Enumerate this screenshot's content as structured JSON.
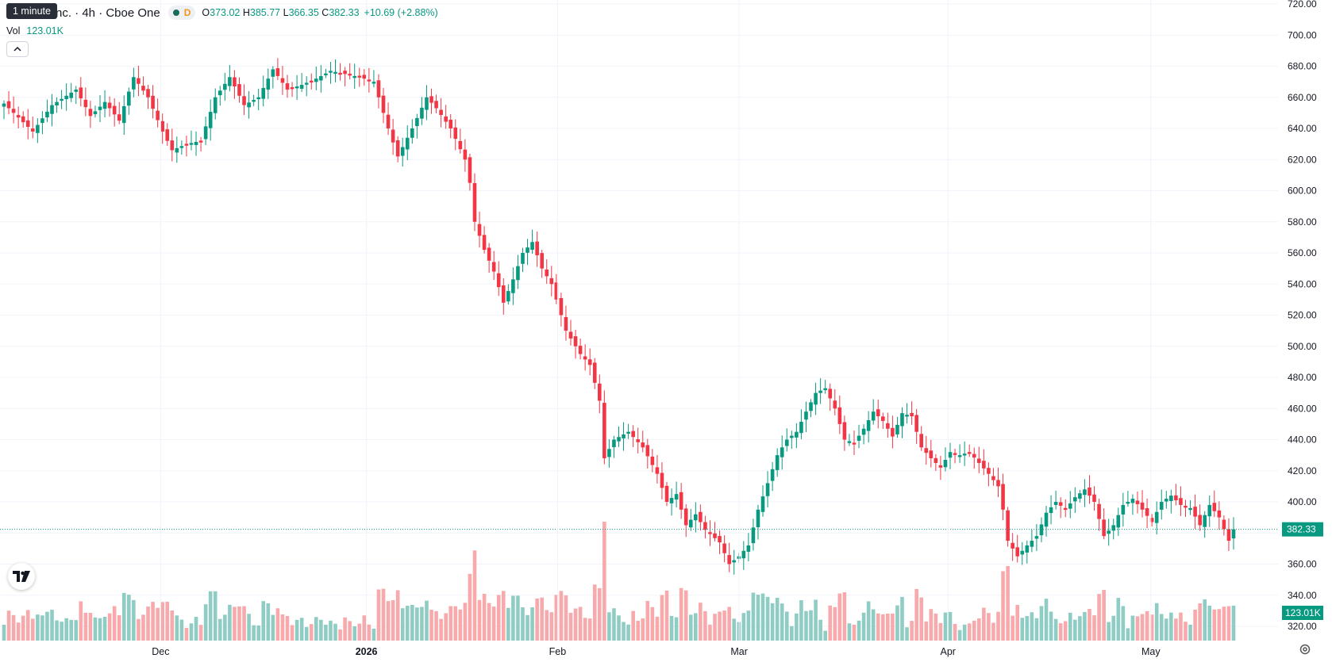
{
  "header": {
    "tooltip": "1 minute",
    "symbol_title": "nc. · 4h · Cboe One",
    "interval_letter": "D",
    "open_label": "O",
    "open_value": "373.02",
    "high_label": "H",
    "high_value": "385.77",
    "low_label": "L",
    "low_value": "366.35",
    "close_label": "C",
    "close_value": "382.33",
    "change": "+10.69 (+2.88%)",
    "vol_label": "Vol",
    "vol_value": "123.01K"
  },
  "price_axis": {
    "labels": [
      "720.00",
      "700.00",
      "680.00",
      "660.00",
      "640.00",
      "620.00",
      "600.00",
      "580.00",
      "560.00",
      "540.00",
      "520.00",
      "500.00",
      "480.00",
      "460.00",
      "440.00",
      "420.00",
      "400.00",
      "380.00",
      "360.00",
      "340.00",
      "320.00"
    ],
    "last_price_label": "382.33",
    "last_volume_label": "123.01K"
  },
  "time_axis": {
    "labels": [
      "Dec",
      "2026",
      "Feb",
      "Mar",
      "Apr",
      "May"
    ]
  },
  "colors": {
    "up": "#089981",
    "down": "#f23645",
    "up_volume": "#8fcdc4",
    "down_volume": "#f7a9ab",
    "grid": "#f0f3fa",
    "axis_text": "#131722",
    "last_price_line": "#089981"
  },
  "icons": {
    "collapse": "chevron-up-icon",
    "logo": "tradingview-logo",
    "settings": "gear-icon"
  },
  "chart_data": {
    "type": "candlestick",
    "interval": "4h",
    "ylim": [
      310,
      720
    ],
    "y_ticks": [
      720,
      700,
      680,
      660,
      640,
      620,
      600,
      580,
      560,
      540,
      520,
      500,
      480,
      460,
      440,
      420,
      400,
      380,
      360,
      340,
      320
    ],
    "x_ticks": [
      "Dec",
      "2026",
      "Feb",
      "Mar",
      "Apr",
      "May"
    ],
    "last_price": 382.33,
    "anchors": [
      [
        0,
        656
      ],
      [
        6,
        638
      ],
      [
        10,
        655
      ],
      [
        15,
        665
      ],
      [
        18,
        648
      ],
      [
        21,
        657
      ],
      [
        24,
        645
      ],
      [
        27,
        673
      ],
      [
        30,
        660
      ],
      [
        33,
        638
      ],
      [
        35,
        626
      ],
      [
        38,
        630
      ],
      [
        41,
        632
      ],
      [
        44,
        660
      ],
      [
        47,
        673
      ],
      [
        50,
        655
      ],
      [
        53,
        660
      ],
      [
        56,
        678
      ],
      [
        59,
        665
      ],
      [
        62,
        668
      ],
      [
        65,
        672
      ],
      [
        68,
        677
      ],
      [
        71,
        675
      ],
      [
        74,
        673
      ],
      [
        77,
        670
      ],
      [
        80,
        640
      ],
      [
        82,
        622
      ],
      [
        85,
        640
      ],
      [
        88,
        660
      ],
      [
        90,
        653
      ],
      [
        93,
        640
      ],
      [
        96,
        620
      ],
      [
        97,
        605
      ],
      [
        98,
        580
      ],
      [
        100,
        562
      ],
      [
        102,
        548
      ],
      [
        104,
        528
      ],
      [
        106,
        543
      ],
      [
        108,
        560
      ],
      [
        110,
        567
      ],
      [
        112,
        550
      ],
      [
        114,
        540
      ],
      [
        117,
        510
      ],
      [
        120,
        495
      ],
      [
        122,
        488
      ],
      [
        124,
        465
      ],
      [
        125,
        428
      ],
      [
        127,
        440
      ],
      [
        130,
        445
      ],
      [
        133,
        435
      ],
      [
        136,
        418
      ],
      [
        138,
        400
      ],
      [
        140,
        405
      ],
      [
        142,
        385
      ],
      [
        144,
        392
      ],
      [
        146,
        382
      ],
      [
        149,
        374
      ],
      [
        151,
        360
      ],
      [
        153,
        365
      ],
      [
        155,
        372
      ],
      [
        157,
        395
      ],
      [
        159,
        412
      ],
      [
        161,
        430
      ],
      [
        163,
        440
      ],
      [
        165,
        445
      ],
      [
        167,
        458
      ],
      [
        169,
        470
      ],
      [
        171,
        473
      ],
      [
        173,
        460
      ],
      [
        175,
        440
      ],
      [
        177,
        438
      ],
      [
        179,
        447
      ],
      [
        181,
        458
      ],
      [
        183,
        452
      ],
      [
        185,
        442
      ],
      [
        187,
        457
      ],
      [
        189,
        455
      ],
      [
        191,
        435
      ],
      [
        193,
        428
      ],
      [
        195,
        422
      ],
      [
        197,
        432
      ],
      [
        199,
        430
      ],
      [
        201,
        432
      ],
      [
        203,
        425
      ],
      [
        205,
        418
      ],
      [
        207,
        410
      ],
      [
        208,
        395
      ],
      [
        209,
        375
      ],
      [
        211,
        365
      ],
      [
        213,
        372
      ],
      [
        215,
        378
      ],
      [
        217,
        393
      ],
      [
        219,
        400
      ],
      [
        221,
        395
      ],
      [
        223,
        403
      ],
      [
        225,
        408
      ],
      [
        227,
        400
      ],
      [
        229,
        378
      ],
      [
        231,
        385
      ],
      [
        233,
        398
      ],
      [
        235,
        402
      ],
      [
        237,
        395
      ],
      [
        239,
        387
      ],
      [
        241,
        400
      ],
      [
        243,
        404
      ],
      [
        245,
        398
      ],
      [
        247,
        396
      ],
      [
        249,
        385
      ],
      [
        251,
        398
      ],
      [
        253,
        390
      ],
      [
        255,
        375
      ],
      [
        256,
        382.33
      ]
    ]
  }
}
